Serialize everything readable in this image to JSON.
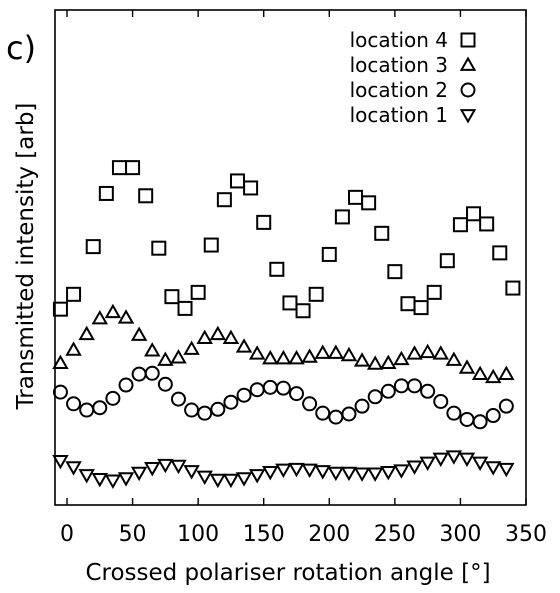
{
  "chart_data": {
    "type": "scatter",
    "panel_label": "c)",
    "xlabel": "Crossed polariser rotation angle [°]",
    "ylabel": "Transmitted intensity [arb]",
    "xlim": [
      -5,
      345
    ],
    "ylim": [
      0,
      100
    ],
    "xticks": [
      0,
      50,
      100,
      150,
      200,
      250,
      300,
      350
    ],
    "yticks_labeled": false,
    "legend_position": "top-right",
    "series": [
      {
        "name": "location 4",
        "marker": "square",
        "x": [
          -5,
          5,
          20,
          30,
          40,
          50,
          60,
          70,
          80,
          90,
          100,
          110,
          120,
          130,
          140,
          150,
          160,
          170,
          180,
          190,
          200,
          210,
          220,
          230,
          240,
          250,
          260,
          270,
          280,
          290,
          300,
          310,
          320,
          330,
          340
        ],
        "y": [
          44.2,
          48.0,
          60.2,
          73.8,
          80.4,
          80.4,
          73.2,
          59.8,
          47.4,
          44.4,
          48.5,
          60.6,
          72.2,
          77.0,
          75.2,
          66.4,
          54.4,
          45.8,
          43.8,
          48.0,
          58.2,
          67.8,
          72.8,
          71.4,
          63.6,
          53.8,
          45.6,
          44.6,
          48.5,
          56.6,
          65.8,
          68.6,
          66.0,
          58.6,
          49.6
        ]
      },
      {
        "name": "location 3",
        "marker": "triangle-up",
        "x": [
          -5,
          5,
          15,
          25,
          35,
          45,
          55,
          65,
          75,
          85,
          95,
          105,
          115,
          125,
          135,
          145,
          155,
          165,
          175,
          185,
          195,
          205,
          215,
          225,
          235,
          245,
          255,
          265,
          275,
          285,
          295,
          305,
          315,
          325,
          335
        ],
        "y": [
          30.4,
          33.8,
          37.8,
          41.8,
          43.4,
          42.0,
          37.6,
          33.6,
          31.2,
          31.8,
          34.0,
          36.8,
          37.8,
          36.8,
          34.6,
          32.8,
          31.6,
          31.6,
          31.6,
          32.0,
          33.0,
          33.0,
          32.4,
          31.0,
          30.2,
          30.4,
          31.4,
          32.8,
          33.2,
          32.8,
          31.2,
          29.2,
          27.6,
          26.8,
          27.6
        ]
      },
      {
        "name": "location 2",
        "marker": "circle",
        "x": [
          -5,
          5,
          15,
          25,
          35,
          45,
          55,
          65,
          75,
          85,
          95,
          105,
          115,
          125,
          135,
          145,
          155,
          165,
          175,
          185,
          195,
          205,
          215,
          225,
          235,
          245,
          255,
          265,
          275,
          285,
          295,
          305,
          315,
          325,
          335
        ],
        "y": [
          23.0,
          20.0,
          18.4,
          19.0,
          21.4,
          24.8,
          27.6,
          27.8,
          25.0,
          21.2,
          18.4,
          17.6,
          18.6,
          20.4,
          22.2,
          23.6,
          24.2,
          24.0,
          22.6,
          20.0,
          17.6,
          16.6,
          17.4,
          19.4,
          21.8,
          23.2,
          24.6,
          24.6,
          23.2,
          20.6,
          17.6,
          16.0,
          15.4,
          17.0,
          19.4
        ]
      },
      {
        "name": "location 1",
        "marker": "triangle-down",
        "x": [
          -5,
          5,
          15,
          25,
          35,
          45,
          55,
          65,
          75,
          85,
          95,
          105,
          115,
          125,
          135,
          145,
          155,
          165,
          175,
          185,
          195,
          205,
          215,
          225,
          235,
          245,
          255,
          265,
          275,
          285,
          295,
          305,
          315,
          325,
          335
        ],
        "y": [
          5.4,
          3.8,
          1.8,
          0.8,
          0.4,
          1.0,
          2.4,
          3.6,
          4.4,
          4.2,
          2.8,
          1.4,
          0.6,
          0.6,
          1.0,
          1.8,
          2.6,
          3.2,
          3.4,
          3.2,
          2.8,
          2.4,
          2.4,
          2.2,
          2.2,
          2.6,
          3.0,
          4.0,
          5.0,
          6.0,
          6.6,
          6.0,
          5.0,
          3.8,
          3.4
        ]
      }
    ]
  }
}
